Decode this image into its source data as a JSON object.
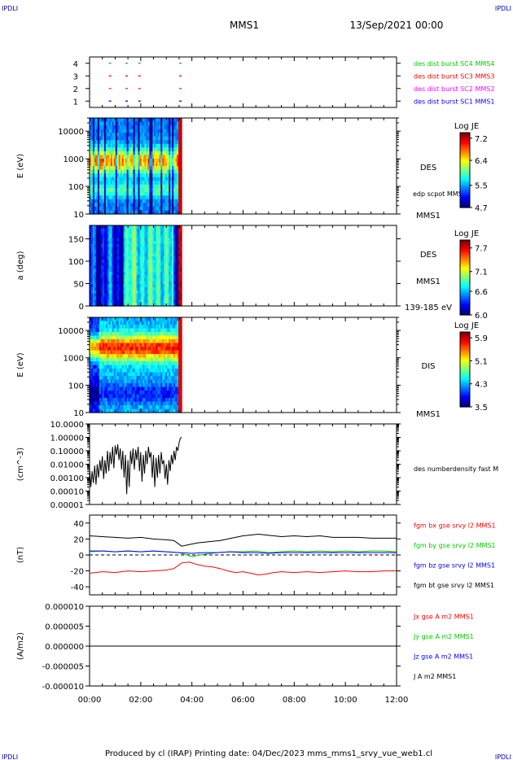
{
  "header": {
    "corner_tl": "IPDLI",
    "corner_tr": "IPDLI",
    "corner_bl": "IPDLI",
    "corner_br": "IPDLI",
    "mission": "MMS1",
    "datetime": "13/Sep/2021 00:00"
  },
  "footer": {
    "text": "Produced by cl (IRAP)   Printing date: 04/Dec/2023   mms_mms1_srvy_vue_web1.cl"
  },
  "colors": {
    "blue": "#0000ff",
    "magenta": "#ff00ff",
    "red": "#ff0000",
    "green": "#00cc00",
    "black": "#000000"
  },
  "chart_data": [
    {
      "id": "burst",
      "type": "scatter",
      "ylabel": "",
      "yticks": [
        "1",
        "2",
        "3",
        "4"
      ],
      "ylim": [
        0.5,
        4.5
      ],
      "x_unit": "hours",
      "xlim": [
        0,
        12
      ],
      "series": [
        {
          "name": "des dist burst SC1 MMS1",
          "color": "#0000ff",
          "y": 1,
          "x": [
            0.8,
            1.45,
            1.95,
            3.55
          ]
        },
        {
          "name": "des dist burst SC2 MMS2",
          "color": "#ff00ff",
          "y": 2,
          "x": [
            0.8,
            1.45,
            1.95,
            3.55
          ]
        },
        {
          "name": "des dist burst SC3 MMS3",
          "color": "#ff0000",
          "y": 3,
          "x": [
            0.8,
            1.45,
            1.95,
            3.55
          ]
        },
        {
          "name": "des dist burst SC4 MMS4",
          "color": "#00cc00",
          "y": 4,
          "x": [
            0.8,
            1.45,
            1.95,
            3.55
          ]
        }
      ]
    },
    {
      "id": "des_energy",
      "type": "heatmap",
      "ylabel": "E (eV)",
      "yscale": "log",
      "ylim": [
        10,
        30000
      ],
      "yticks": [
        "10",
        "100",
        "1000",
        "10000"
      ],
      "x_range_hours": [
        0,
        3.6
      ],
      "labels": [
        "DES",
        "edp scpot MMS1",
        "MMS1"
      ],
      "colorbar": {
        "title": "Log JE",
        "ticks": [
          "7.2",
          "6.4",
          "5.5",
          "4.7"
        ],
        "min": 4.7,
        "max": 7.4
      }
    },
    {
      "id": "des_pitch",
      "type": "heatmap",
      "ylabel": "a (deg)",
      "ylim": [
        0,
        180
      ],
      "yticks": [
        "0",
        "50",
        "100",
        "150"
      ],
      "x_range_hours": [
        0,
        3.6
      ],
      "labels": [
        "DES",
        "MMS1",
        "139-185 eV"
      ],
      "colorbar": {
        "title": "Log JE",
        "ticks": [
          "7.7",
          "7.1",
          "6.6",
          "6.0"
        ],
        "min": 6.0,
        "max": 7.9
      }
    },
    {
      "id": "dis_energy",
      "type": "heatmap",
      "ylabel": "E (eV)",
      "yscale": "log",
      "ylim": [
        10,
        30000
      ],
      "yticks": [
        "10",
        "100",
        "1000",
        "10000"
      ],
      "x_range_hours": [
        0,
        3.6
      ],
      "labels": [
        "DIS",
        "MMS1"
      ],
      "colorbar": {
        "title": "Log JE",
        "ticks": [
          "5.9",
          "5.1",
          "4.3",
          "3.5"
        ],
        "min": 3.5,
        "max": 6.1
      }
    },
    {
      "id": "density",
      "type": "line",
      "ylabel": "(cm^-3)",
      "yscale": "log",
      "ylim": [
        1e-05,
        10
      ],
      "yticks": [
        "0.00001",
        "0.00010",
        "0.00100",
        "0.01000",
        "0.10000",
        "1.00000",
        "10.0000"
      ],
      "series": [
        {
          "name": "des numberdensity fast M",
          "color": "#000000",
          "x": [
            0.0,
            0.05,
            0.1,
            0.15,
            0.2,
            0.25,
            0.3,
            0.35,
            0.4,
            0.45,
            0.5,
            0.55,
            0.6,
            0.65,
            0.7,
            0.75,
            0.8,
            0.85,
            0.9,
            0.95,
            1.0,
            1.05,
            1.1,
            1.15,
            1.2,
            1.25,
            1.3,
            1.35,
            1.4,
            1.45,
            1.5,
            1.55,
            1.6,
            1.65,
            1.7,
            1.75,
            1.8,
            1.85,
            1.9,
            1.95,
            2.0,
            2.05,
            2.1,
            2.15,
            2.2,
            2.25,
            2.3,
            2.35,
            2.4,
            2.45,
            2.5,
            2.55,
            2.6,
            2.65,
            2.7,
            2.75,
            2.8,
            2.85,
            2.9,
            2.95,
            3.0,
            3.05,
            3.1,
            3.15,
            3.2,
            3.25,
            3.3,
            3.35,
            3.4,
            3.45,
            3.5,
            3.55,
            3.6
          ],
          "y": [
            0.005,
            0.0002,
            0.003,
            0.0004,
            0.008,
            0.0003,
            0.01,
            0.001,
            0.02,
            0.003,
            0.04,
            0.0008,
            0.02,
            0.002,
            0.1,
            0.003,
            0.08,
            0.01,
            0.2,
            0.005,
            0.25,
            0.05,
            0.3,
            0.02,
            0.15,
            0.004,
            0.1,
            0.001,
            0.05,
            6e-05,
            0.02,
            0.0002,
            0.1,
            0.01,
            0.15,
            0.004,
            0.12,
            0.02,
            0.2,
            0.003,
            0.08,
            0.0005,
            0.05,
            0.002,
            0.1,
            0.01,
            0.2,
            0.03,
            0.08,
            0.001,
            0.05,
            0.0002,
            0.03,
            0.001,
            0.05,
            0.002,
            0.08,
            0.01,
            0.02,
            0.0008,
            0.01,
            0.0003,
            0.02,
            0.003,
            0.05,
            0.01,
            0.1,
            0.02,
            0.2,
            0.1,
            0.4,
            0.9,
            1.0
          ]
        }
      ]
    },
    {
      "id": "fgm",
      "type": "line",
      "ylabel": "(nT)",
      "ylim": [
        -50,
        50
      ],
      "yticks": [
        "-40",
        "-20",
        "0",
        "20",
        "40"
      ],
      "series": [
        {
          "name": "fgm bx gse srvy l2 MMS1",
          "color": "#ff0000",
          "x": [
            0,
            0.5,
            1,
            1.5,
            2,
            2.5,
            3,
            3.3,
            3.6,
            3.9,
            4.2,
            4.5,
            4.8,
            5.1,
            5.4,
            5.7,
            6,
            6.3,
            6.6,
            6.9,
            7.2,
            7.5,
            8,
            8.5,
            9,
            9.5,
            10,
            10.5,
            11,
            11.5,
            12
          ],
          "y": [
            -23,
            -21,
            -22,
            -20,
            -21,
            -20,
            -19,
            -17,
            -10,
            -9,
            -12,
            -14,
            -15,
            -17,
            -20,
            -22,
            -21,
            -23,
            -25,
            -24,
            -22,
            -21,
            -22,
            -21,
            -22,
            -21,
            -20,
            -21,
            -21,
            -20,
            -20
          ]
        },
        {
          "name": "fgm by gse srvy l2 MMS1",
          "color": "#00cc00",
          "x": [
            0,
            0.5,
            1,
            1.5,
            2,
            2.5,
            3,
            3.5,
            4,
            4.5,
            5,
            5.5,
            6,
            6.5,
            7,
            7.5,
            8,
            8.5,
            9,
            9.5,
            10,
            10.5,
            11,
            11.5,
            12
          ],
          "y": [
            4,
            5,
            4,
            5,
            4,
            5,
            4,
            3,
            -2,
            1,
            3,
            4,
            4,
            5,
            3,
            4,
            5,
            4,
            5,
            4,
            5,
            4,
            5,
            5,
            4
          ]
        },
        {
          "name": "fgm bz gse srvy l2 MMS1",
          "color": "#0000ff",
          "x": [
            0,
            0.5,
            1,
            1.5,
            2,
            2.5,
            3,
            3.5,
            4,
            4.5,
            5,
            5.5,
            6,
            6.5,
            7,
            7.5,
            8,
            8.5,
            9,
            9.5,
            10,
            10.5,
            11,
            11.5,
            12
          ],
          "y": [
            5,
            5,
            4,
            5,
            4,
            5,
            4,
            3,
            2,
            3,
            3,
            4,
            3,
            3,
            2,
            3,
            3,
            3,
            3,
            3,
            3,
            3,
            3,
            3,
            3
          ]
        },
        {
          "name": "fgm bt gse srvy l2 MMS1",
          "color": "#000000",
          "x": [
            0,
            0.5,
            1,
            1.5,
            2,
            2.5,
            3,
            3.3,
            3.6,
            3.9,
            4.2,
            4.5,
            4.8,
            5.1,
            5.4,
            5.7,
            6,
            6.3,
            6.6,
            6.9,
            7.2,
            7.5,
            8,
            8.5,
            9,
            9.5,
            10,
            10.5,
            11,
            11.5,
            12
          ],
          "y": [
            24,
            23,
            22,
            21,
            22,
            20,
            19,
            18,
            11,
            13,
            15,
            16,
            17,
            18,
            20,
            22,
            24,
            25,
            26,
            25,
            24,
            23,
            24,
            23,
            24,
            22,
            22,
            22,
            21,
            21,
            21
          ]
        }
      ]
    },
    {
      "id": "current",
      "type": "line",
      "ylabel": "(A/m2)",
      "ylim": [
        -1e-05,
        1e-05
      ],
      "yticks": [
        "-0.000010",
        "-0.000005",
        "0.000000",
        "0.000005",
        "0.000010"
      ],
      "series": [
        {
          "name": "Jx gse A m2 MMS1",
          "color": "#ff0000",
          "x": [
            3.5,
            4.0,
            5.0
          ],
          "y": [
            0,
            0,
            0
          ]
        },
        {
          "name": "Jy gse A m2 MMS1",
          "color": "#00cc00",
          "x": [
            3.5,
            4.0,
            5.0
          ],
          "y": [
            0,
            0,
            0
          ]
        },
        {
          "name": "Jz gse A m2 MMS1",
          "color": "#0000ff",
          "x": [
            3.5,
            4.0,
            5.0
          ],
          "y": [
            0,
            0,
            0
          ]
        },
        {
          "name": "J A m2 MMS1",
          "color": "#000000",
          "x": [
            3.5,
            4.0,
            5.0
          ],
          "y": [
            0,
            0,
            0
          ]
        }
      ]
    }
  ],
  "xaxis": {
    "ticks": [
      "00:00",
      "02:00",
      "04:00",
      "06:00",
      "08:00",
      "10:00",
      "12:00"
    ],
    "range_hours": [
      0,
      12
    ]
  }
}
